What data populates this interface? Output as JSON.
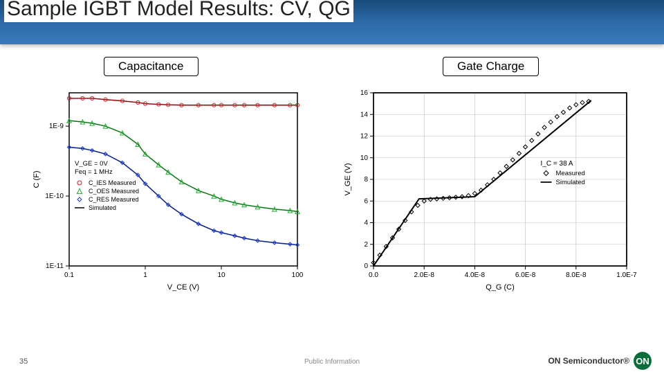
{
  "slide": {
    "title": "Sample IGBT Model Results: CV, QG",
    "page_number": "35",
    "footer_center": "Public Information",
    "brand_text": "ON Semiconductor®",
    "brand_badge": "ON"
  },
  "left_label": "Capacitance",
  "right_label": "Gate Charge",
  "cap_chart": {
    "type": "line+scatter",
    "xlabel": "V_CE (V)",
    "ylabel": "C (F)",
    "xscale": "log",
    "yscale": "log",
    "xlim": [
      0.1,
      100
    ],
    "ylim": [
      1e-11,
      3e-09
    ],
    "xticks": [
      0.1,
      1,
      10,
      100
    ],
    "xtick_labels": [
      "0.1",
      "1",
      "10",
      "100"
    ],
    "yticks": [
      1e-11,
      1e-10,
      1e-09
    ],
    "ytick_labels": [
      "1E-11",
      "1E-10",
      "1E-9"
    ],
    "background_color": "#ffffff",
    "border_color": "#000000",
    "axis_fontsize": 10,
    "label_fontsize": 11,
    "cond_lines": [
      "V_GE = 0V",
      "Feq = 1 MHz"
    ],
    "legend_items": [
      {
        "marker": "circle",
        "color": "#d32020",
        "label": "C_IES Measured"
      },
      {
        "marker": "triangle",
        "color": "#1fae2e",
        "label": "C_OES Measured"
      },
      {
        "marker": "diamond",
        "color": "#1436d6",
        "label": "C_RES Measured"
      },
      {
        "marker": "line",
        "color": "#000000",
        "label": "Simulated"
      }
    ],
    "series": [
      {
        "name": "CIES",
        "color": "#d32020",
        "marker": "circle",
        "x": [
          0.1,
          0.15,
          0.2,
          0.3,
          0.5,
          0.8,
          1,
          1.5,
          2,
          3,
          5,
          8,
          10,
          15,
          20,
          30,
          50,
          80,
          100
        ],
        "y": [
          2.5e-09,
          2.5e-09,
          2.5e-09,
          2.4e-09,
          2.3e-09,
          2.18e-09,
          2.1e-09,
          2.05e-09,
          2.02e-09,
          2e-09,
          2e-09,
          2e-09,
          2e-09,
          2e-09,
          2e-09,
          2e-09,
          2e-09,
          2e-09,
          2e-09
        ]
      },
      {
        "name": "COES",
        "color": "#1fae2e",
        "marker": "triangle",
        "x": [
          0.1,
          0.15,
          0.2,
          0.3,
          0.5,
          0.8,
          1,
          1.5,
          2,
          3,
          5,
          8,
          10,
          15,
          20,
          30,
          50,
          80,
          100
        ],
        "y": [
          1.2e-09,
          1.15e-09,
          1.1e-09,
          1e-09,
          8e-10,
          5.5e-10,
          4e-10,
          2.8e-10,
          2.2e-10,
          1.6e-10,
          1.2e-10,
          1e-10,
          9e-11,
          8e-11,
          7.5e-11,
          7e-11,
          6.5e-11,
          6.2e-11,
          6e-11
        ]
      },
      {
        "name": "CRES",
        "color": "#1436d6",
        "marker": "diamond",
        "x": [
          0.1,
          0.15,
          0.2,
          0.3,
          0.5,
          0.8,
          1,
          1.5,
          2,
          3,
          5,
          8,
          10,
          15,
          20,
          30,
          50,
          80,
          100
        ],
        "y": [
          5e-10,
          4.8e-10,
          4.5e-10,
          4e-10,
          3e-10,
          2e-10,
          1.5e-10,
          1e-10,
          7.5e-11,
          5.5e-11,
          4e-11,
          3.2e-11,
          3e-11,
          2.7e-11,
          2.5e-11,
          2.3e-11,
          2.15e-11,
          2.05e-11,
          2e-11
        ]
      }
    ]
  },
  "qg_chart": {
    "type": "line+scatter",
    "xlabel": "Q_G (C)",
    "ylabel": "V_GE (V)",
    "xlim": [
      0.0,
      1e-07
    ],
    "ylim": [
      0,
      16
    ],
    "xticks": [
      0.0,
      2e-08,
      4e-08,
      6e-08,
      8e-08,
      1e-07
    ],
    "xtick_labels": [
      "0.0",
      "2.0E-8",
      "4.0E-8",
      "6.0E-8",
      "8.0E-8",
      "1.0E-7"
    ],
    "yticks": [
      0,
      2,
      4,
      6,
      8,
      10,
      12,
      14,
      16
    ],
    "ytick_labels": [
      "0",
      "2",
      "4",
      "6",
      "8",
      "10",
      "12",
      "14",
      "16"
    ],
    "background_color": "#ffffff",
    "grid_color": "#bfbfbf",
    "border_color": "#000000",
    "axis_fontsize": 10,
    "label_fontsize": 11,
    "cond_lines": [
      "I_C = 38 A"
    ],
    "legend_items": [
      {
        "marker": "diamond",
        "color": "#000000",
        "label": "Measured"
      },
      {
        "marker": "line",
        "color": "#000000",
        "label": "Simulated"
      }
    ],
    "measured": {
      "color": "#000000",
      "marker": "diamond",
      "x": [
        0,
        2.5e-09,
        5e-09,
        7.5e-09,
        1e-08,
        1.25e-08,
        1.5e-08,
        1.75e-08,
        2e-08,
        2.25e-08,
        2.5e-08,
        2.75e-08,
        3e-08,
        3.25e-08,
        3.5e-08,
        3.75e-08,
        4e-08,
        4.25e-08,
        4.5e-08,
        4.75e-08,
        5e-08,
        5.25e-08,
        5.5e-08,
        5.75e-08,
        6e-08,
        6.25e-08,
        6.5e-08,
        6.75e-08,
        7e-08,
        7.25e-08,
        7.5e-08,
        7.75e-08,
        8e-08,
        8.25e-08,
        8.5e-08
      ],
      "y": [
        0.3,
        1.0,
        1.8,
        2.6,
        3.4,
        4.2,
        5.0,
        5.6,
        6.0,
        6.15,
        6.2,
        6.25,
        6.3,
        6.35,
        6.4,
        6.5,
        6.7,
        7.0,
        7.5,
        8.0,
        8.6,
        9.2,
        9.8,
        10.4,
        11.0,
        11.6,
        12.2,
        12.8,
        13.3,
        13.8,
        14.2,
        14.6,
        14.9,
        15.1,
        15.2
      ]
    },
    "simulated": {
      "color": "#000000",
      "x": [
        0,
        1.8e-08,
        4e-08,
        8.6e-08
      ],
      "y": [
        0,
        6.2,
        6.4,
        15.3
      ]
    }
  }
}
